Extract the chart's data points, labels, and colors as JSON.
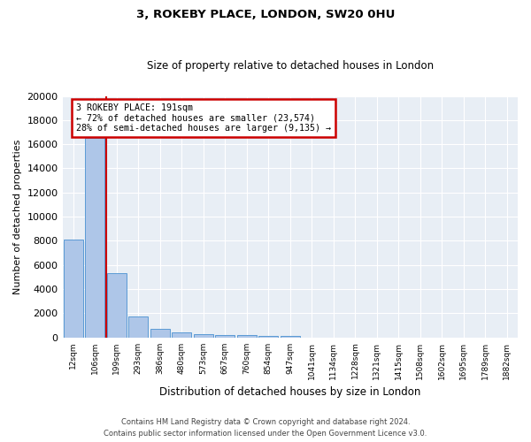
{
  "title1": "3, ROKEBY PLACE, LONDON, SW20 0HU",
  "title2": "Size of property relative to detached houses in London",
  "xlabel": "Distribution of detached houses by size in London",
  "ylabel": "Number of detached properties",
  "bar_labels": [
    "12sqm",
    "106sqm",
    "199sqm",
    "293sqm",
    "386sqm",
    "480sqm",
    "573sqm",
    "667sqm",
    "760sqm",
    "854sqm",
    "947sqm",
    "1041sqm",
    "1134sqm",
    "1228sqm",
    "1321sqm",
    "1415sqm",
    "1508sqm",
    "1602sqm",
    "1695sqm",
    "1789sqm",
    "1882sqm"
  ],
  "bar_values": [
    8100,
    16500,
    5300,
    1750,
    700,
    380,
    260,
    200,
    160,
    120,
    90,
    0,
    0,
    0,
    0,
    0,
    0,
    0,
    0,
    0,
    0
  ],
  "bar_color": "#aec6e8",
  "bar_edge_color": "#5b9bd5",
  "annotation_text": "3 ROKEBY PLACE: 191sqm\n← 72% of detached houses are smaller (23,574)\n28% of semi-detached houses are larger (9,135) →",
  "annotation_box_color": "#ffffff",
  "annotation_box_edge": "#cc0000",
  "vline_color": "#cc0000",
  "ylim": [
    0,
    20000
  ],
  "yticks": [
    0,
    2000,
    4000,
    6000,
    8000,
    10000,
    12000,
    14000,
    16000,
    18000,
    20000
  ],
  "footer_line1": "Contains HM Land Registry data © Crown copyright and database right 2024.",
  "footer_line2": "Contains public sector information licensed under the Open Government Licence v3.0.",
  "plot_bg_color": "#e8eef5"
}
